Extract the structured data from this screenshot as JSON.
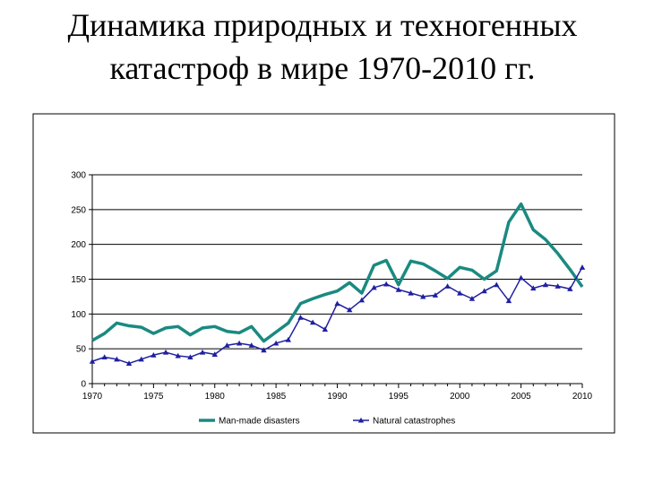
{
  "title": {
    "line1": "Динамика природных и техногенных",
    "line2": "катастроф в мире 1970-2010 гг."
  },
  "chart_data": {
    "type": "line",
    "title": "Динамика природных и техногенных катастроф в мире 1970-2010 гг.",
    "xlabel": "",
    "ylabel": "",
    "xlim": [
      1970,
      2010
    ],
    "ylim": [
      0,
      300
    ],
    "x_ticks": [
      1970,
      1975,
      1980,
      1985,
      1990,
      1995,
      2000,
      2005,
      2010
    ],
    "y_ticks": [
      0,
      50,
      100,
      150,
      200,
      250,
      300
    ],
    "grid": "horizontal",
    "legend_position": "bottom",
    "x": [
      1970,
      1971,
      1972,
      1973,
      1974,
      1975,
      1976,
      1977,
      1978,
      1979,
      1980,
      1981,
      1982,
      1983,
      1984,
      1985,
      1986,
      1987,
      1988,
      1989,
      1990,
      1991,
      1992,
      1993,
      1994,
      1995,
      1996,
      1997,
      1998,
      1999,
      2000,
      2001,
      2002,
      2003,
      2004,
      2005,
      2006,
      2007,
      2008,
      2009,
      2010
    ],
    "series": [
      {
        "name": "Man-made disasters",
        "color": "#1a8a80",
        "marker": "none",
        "values": [
          62,
          72,
          87,
          83,
          81,
          72,
          80,
          82,
          70,
          80,
          82,
          75,
          73,
          82,
          61,
          74,
          87,
          115,
          122,
          128,
          133,
          145,
          130,
          170,
          177,
          142,
          176,
          172,
          162,
          151,
          167,
          163,
          150,
          162,
          232,
          258,
          221,
          207,
          187,
          164,
          139
        ]
      },
      {
        "name": "Natural catastrophes",
        "color": "#1f1fa0",
        "marker": "triangle",
        "values": [
          32,
          38,
          35,
          29,
          35,
          41,
          45,
          40,
          38,
          45,
          42,
          55,
          58,
          55,
          48,
          58,
          63,
          95,
          88,
          78,
          115,
          106,
          120,
          138,
          143,
          135,
          130,
          125,
          127,
          140,
          130,
          122,
          133,
          142,
          119,
          152,
          137,
          142,
          140,
          136,
          167
        ]
      }
    ]
  }
}
